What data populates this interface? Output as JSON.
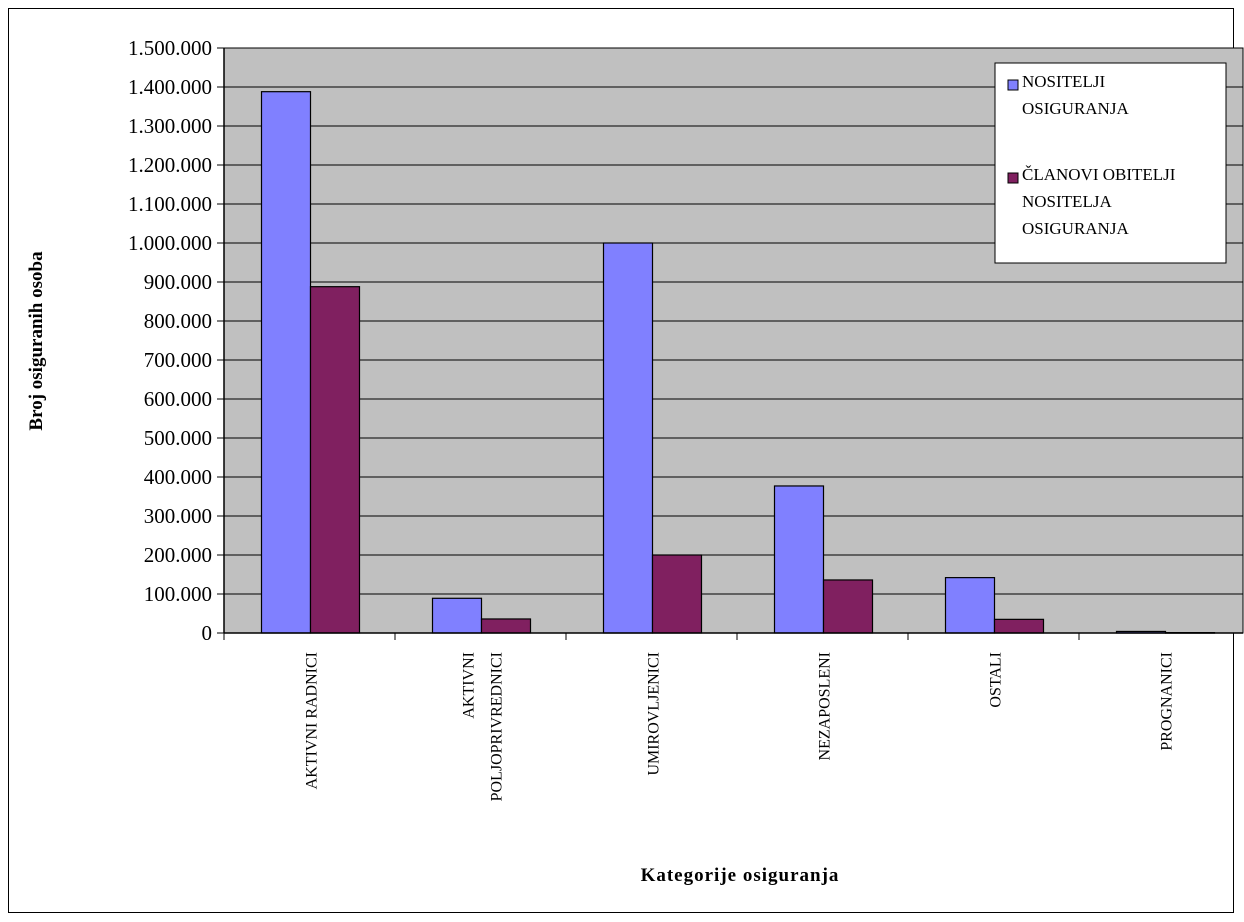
{
  "chart_data": {
    "type": "bar",
    "title": "",
    "xlabel": "Kategorije osiguranja",
    "ylabel": "Broj osiguranih osoba",
    "ylim": [
      0,
      1500000
    ],
    "ytick_values": [
      0,
      100000,
      200000,
      300000,
      400000,
      500000,
      600000,
      700000,
      800000,
      900000,
      1000000,
      1100000,
      1200000,
      1300000,
      1400000,
      1500000
    ],
    "ytick_labels": [
      "0",
      "100.000",
      "200.000",
      "300.000",
      "400.000",
      "500.000",
      "600.000",
      "700.000",
      "800.000",
      "900.000",
      "1.000.000",
      "1.100.000",
      "1.200.000",
      "1.300.000",
      "1.400.000",
      "1.500.000"
    ],
    "categories": [
      "AKTIVNI RADNICI",
      "AKTIVNI POLJOPRIVREDNICI",
      "UMIROVLJENICI",
      "NEZAPOSLENI",
      "OSTALI",
      "PROGNANICI"
    ],
    "category_label_lines": [
      [
        "AKTIVNI RADNICI"
      ],
      [
        "AKTIVNI",
        "POLJOPRIVREDNICI"
      ],
      [
        "UMIROVLJENICI"
      ],
      [
        "NEZAPOSLENI"
      ],
      [
        "OSTALI"
      ],
      [
        "PROGNANICI"
      ]
    ],
    "series": [
      {
        "name": "NOSITELJI OSIGURANJA",
        "legend_lines": [
          "NOSITELJI",
          "OSIGURANJA"
        ],
        "color": "#8080FF",
        "values": [
          1388000,
          89000,
          1000000,
          377000,
          142000,
          4000
        ]
      },
      {
        "name": "ČLANOVI OBITELJI NOSITELJA OSIGURANJA",
        "legend_lines": [
          "ČLANOVI OBITELJI",
          "NOSITELJA",
          "OSIGURANJA"
        ],
        "color": "#802060",
        "values": [
          888000,
          36000,
          200000,
          136000,
          35000,
          1000
        ]
      }
    ],
    "grid": true,
    "plot_background": "#C0C0C0",
    "legend_position": "top-right"
  }
}
